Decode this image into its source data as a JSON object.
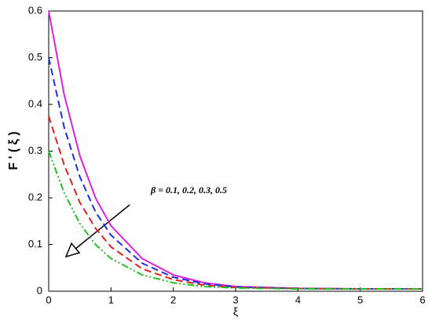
{
  "chart_data": {
    "type": "line",
    "x_label": "ξ",
    "y_label": "F ' ( ξ )",
    "annotation": "β = 0.1, 0.2, 0.3, 0.5",
    "x": [
      0,
      0.25,
      0.5,
      0.75,
      1,
      1.5,
      2,
      2.5,
      3,
      4,
      5,
      6
    ],
    "series": [
      {
        "color": "#e020e0",
        "dash": "solid",
        "values": [
          0.6,
          0.42,
          0.29,
          0.2,
          0.14,
          0.07,
          0.035,
          0.018,
          0.01,
          0.006,
          0.005,
          0.005
        ]
      },
      {
        "color": "#2030e0",
        "dash": "dashed",
        "values": [
          0.5,
          0.35,
          0.245,
          0.17,
          0.12,
          0.06,
          0.03,
          0.016,
          0.009,
          0.006,
          0.005,
          0.005
        ]
      },
      {
        "color": "#e02020",
        "dash": "dashed",
        "values": [
          0.375,
          0.27,
          0.19,
          0.135,
          0.095,
          0.048,
          0.025,
          0.013,
          0.008,
          0.006,
          0.005,
          0.005
        ]
      },
      {
        "color": "#20c020",
        "dash": "dashdot",
        "values": [
          0.3,
          0.21,
          0.145,
          0.1,
          0.07,
          0.035,
          0.018,
          0.01,
          0.007,
          0.005,
          0.005,
          0.005
        ]
      }
    ],
    "xlim": [
      0,
      6
    ],
    "xticks": [
      0,
      1,
      2,
      3,
      4,
      5,
      6
    ],
    "ylim": [
      0,
      0.6
    ],
    "yticks": [
      0,
      0.1,
      0.2,
      0.3,
      0.4,
      0.5,
      0.6
    ]
  }
}
